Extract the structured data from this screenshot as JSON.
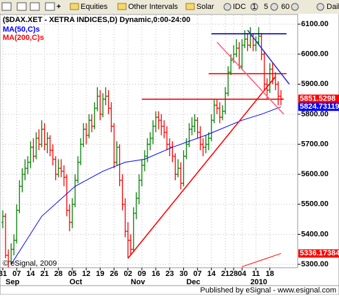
{
  "toolbar": [
    "Equities",
    "Other Intervals",
    "Solar",
    "IDC",
    "1",
    "5",
    "60",
    "Dail"
  ],
  "chart_data": {
    "type": "ohlc",
    "title": "($DAX.XET - XETRA INDICES,D) Dynamic,0:00-24:00",
    "up_color": "#008000",
    "down_color": "#ff0000",
    "xlim": [
      -1,
      106
    ],
    "ylim": [
      5291,
      6130
    ],
    "yticks": [
      {
        "value": 5300,
        "label": "5300.00"
      },
      {
        "value": 5400,
        "label": "5400.00"
      },
      {
        "value": 5500,
        "label": "5500.00"
      },
      {
        "value": 5600,
        "label": "5600.00"
      },
      {
        "value": 5700,
        "label": "5700.00"
      },
      {
        "value": 5800,
        "label": "5800.00"
      },
      {
        "value": 5900,
        "label": "5900.00"
      },
      {
        "value": 6000,
        "label": "6000.00"
      },
      {
        "value": 6100,
        "label": "6100.00"
      }
    ],
    "xticks": [
      {
        "value": 0,
        "label": "31"
      },
      {
        "value": 5,
        "label": "07"
      },
      {
        "value": 10,
        "label": "14"
      },
      {
        "value": 15,
        "label": "21"
      },
      {
        "value": 20,
        "label": "28"
      },
      {
        "value": 25,
        "label": "05"
      },
      {
        "value": 30,
        "label": "12"
      },
      {
        "value": 35,
        "label": "19"
      },
      {
        "value": 40,
        "label": "26"
      },
      {
        "value": 45,
        "label": "02"
      },
      {
        "value": 50,
        "label": "09"
      },
      {
        "value": 55,
        "label": "16"
      },
      {
        "value": 60,
        "label": "23"
      },
      {
        "value": 65,
        "label": "30"
      },
      {
        "value": 70,
        "label": "07"
      },
      {
        "value": 75,
        "label": "14"
      },
      {
        "value": 80,
        "label": "21"
      },
      {
        "value": 83,
        "label": "28"
      },
      {
        "value": 86,
        "label": "04"
      },
      {
        "value": 91,
        "label": "11"
      },
      {
        "value": 96,
        "label": "18"
      }
    ],
    "months": [
      {
        "value": 0,
        "label": "Sep"
      },
      {
        "value": 23,
        "label": "Oct"
      },
      {
        "value": 45,
        "label": "Nov"
      },
      {
        "value": 65,
        "label": "Dec"
      },
      {
        "value": 88,
        "label": "2010"
      }
    ],
    "grid": true,
    "ohlc": [
      [
        5440,
        5480,
        5420,
        5460
      ],
      [
        5460,
        5470,
        5320,
        5330
      ],
      [
        5330,
        5350,
        5290,
        5310
      ],
      [
        5310,
        5370,
        5300,
        5350
      ],
      [
        5350,
        5400,
        5330,
        5380
      ],
      [
        5380,
        5500,
        5370,
        5480
      ],
      [
        5480,
        5580,
        5470,
        5560
      ],
      [
        5560,
        5620,
        5540,
        5600
      ],
      [
        5600,
        5650,
        5580,
        5620
      ],
      [
        5620,
        5660,
        5600,
        5640
      ],
      [
        5640,
        5710,
        5620,
        5690
      ],
      [
        5690,
        5720,
        5640,
        5660
      ],
      [
        5660,
        5740,
        5650,
        5720
      ],
      [
        5720,
        5750,
        5680,
        5700
      ],
      [
        5700,
        5780,
        5690,
        5750
      ],
      [
        5750,
        5770,
        5680,
        5700
      ],
      [
        5700,
        5740,
        5670,
        5720
      ],
      [
        5720,
        5730,
        5660,
        5680
      ],
      [
        5680,
        5700,
        5630,
        5650
      ],
      [
        5650,
        5660,
        5580,
        5600
      ],
      [
        5600,
        5650,
        5590,
        5620
      ],
      [
        5620,
        5650,
        5590,
        5610
      ],
      [
        5610,
        5630,
        5560,
        5590
      ],
      [
        5590,
        5600,
        5460,
        5480
      ],
      [
        5480,
        5500,
        5410,
        5440
      ],
      [
        5440,
        5520,
        5420,
        5500
      ],
      [
        5500,
        5600,
        5490,
        5580
      ],
      [
        5580,
        5660,
        5570,
        5640
      ],
      [
        5640,
        5720,
        5630,
        5700
      ],
      [
        5700,
        5770,
        5690,
        5750
      ],
      [
        5750,
        5770,
        5700,
        5730
      ],
      [
        5730,
        5800,
        5720,
        5780
      ],
      [
        5780,
        5800,
        5740,
        5760
      ],
      [
        5760,
        5840,
        5750,
        5820
      ],
      [
        5820,
        5890,
        5810,
        5860
      ],
      [
        5860,
        5880,
        5780,
        5800
      ],
      [
        5800,
        5870,
        5790,
        5850
      ],
      [
        5850,
        5890,
        5830,
        5860
      ],
      [
        5860,
        5880,
        5800,
        5820
      ],
      [
        5820,
        5840,
        5740,
        5760
      ],
      [
        5760,
        5770,
        5620,
        5640
      ],
      [
        5640,
        5710,
        5630,
        5690
      ],
      [
        5690,
        5700,
        5560,
        5580
      ],
      [
        5580,
        5600,
        5480,
        5500
      ],
      [
        5500,
        5520,
        5390,
        5410
      ],
      [
        5410,
        5440,
        5320,
        5380
      ],
      [
        5380,
        5400,
        5330,
        5350
      ],
      [
        5350,
        5490,
        5340,
        5470
      ],
      [
        5470,
        5540,
        5450,
        5520
      ],
      [
        5520,
        5600,
        5500,
        5580
      ],
      [
        5580,
        5650,
        5560,
        5630
      ],
      [
        5630,
        5680,
        5610,
        5660
      ],
      [
        5660,
        5720,
        5640,
        5700
      ],
      [
        5700,
        5740,
        5680,
        5720
      ],
      [
        5720,
        5780,
        5700,
        5760
      ],
      [
        5760,
        5810,
        5740,
        5790
      ],
      [
        5790,
        5810,
        5750,
        5780
      ],
      [
        5780,
        5800,
        5730,
        5760
      ],
      [
        5760,
        5780,
        5720,
        5740
      ],
      [
        5740,
        5760,
        5680,
        5700
      ],
      [
        5700,
        5720,
        5660,
        5690
      ],
      [
        5690,
        5710,
        5640,
        5660
      ],
      [
        5660,
        5670,
        5580,
        5600
      ],
      [
        5600,
        5650,
        5590,
        5620
      ],
      [
        5620,
        5640,
        5550,
        5570
      ],
      [
        5570,
        5680,
        5560,
        5660
      ],
      [
        5660,
        5720,
        5650,
        5700
      ],
      [
        5700,
        5770,
        5690,
        5750
      ],
      [
        5750,
        5790,
        5730,
        5760
      ],
      [
        5760,
        5800,
        5740,
        5780
      ],
      [
        5780,
        5790,
        5720,
        5740
      ],
      [
        5740,
        5760,
        5680,
        5700
      ],
      [
        5700,
        5720,
        5660,
        5690
      ],
      [
        5690,
        5730,
        5670,
        5700
      ],
      [
        5700,
        5740,
        5680,
        5720
      ],
      [
        5720,
        5800,
        5710,
        5780
      ],
      [
        5780,
        5850,
        5770,
        5830
      ],
      [
        5830,
        5850,
        5800,
        5820
      ],
      [
        5820,
        5840,
        5770,
        5790
      ],
      [
        5790,
        5830,
        5780,
        5810
      ],
      [
        5810,
        5890,
        5800,
        5870
      ],
      [
        5870,
        5960,
        5860,
        5940
      ],
      [
        5940,
        6000,
        5930,
        5980
      ],
      [
        5980,
        6030,
        5970,
        6000
      ],
      [
        6000,
        6050,
        5990,
        6020
      ],
      [
        6020,
        6040,
        5950,
        5960
      ],
      [
        5960,
        6050,
        5950,
        6030
      ],
      [
        6030,
        6080,
        6020,
        6050
      ],
      [
        6050,
        6070,
        6010,
        6030
      ],
      [
        6030,
        6090,
        6020,
        6060
      ],
      [
        6060,
        6070,
        6010,
        6030
      ],
      [
        6030,
        6060,
        6010,
        6040
      ],
      [
        6040,
        6090,
        6030,
        6060
      ],
      [
        6060,
        6070,
        5980,
        6000
      ],
      [
        6000,
        6010,
        5880,
        5900
      ],
      [
        5900,
        5920,
        5850,
        5880
      ],
      [
        5880,
        5970,
        5870,
        5950
      ],
      [
        5950,
        5970,
        5900,
        5920
      ],
      [
        5920,
        5940,
        5880,
        5900
      ],
      [
        5900,
        5910,
        5830,
        5860
      ],
      [
        5860,
        5880,
        5830,
        5851.5298
      ]
    ],
    "series": [
      {
        "name": "MA(50,C)s",
        "color": "#0000ff",
        "x": [
          3,
          14,
          26,
          36,
          44,
          51,
          61,
          73,
          86,
          93,
          100
        ],
        "values": [
          5300,
          5460,
          5560,
          5610,
          5640,
          5650,
          5690,
          5730,
          5780,
          5800,
          5824.73119
        ]
      },
      {
        "name": "MA(200,C)s",
        "color": "#ff0000",
        "x": [
          86,
          100
        ],
        "values": [
          5292,
          5336.17384
        ]
      }
    ],
    "tags": [
      {
        "value": 5851.5298,
        "color": "#ff0000"
      },
      {
        "value": 5824.73119,
        "color": "#0000ff"
      },
      {
        "value": 5336.17384,
        "color": "#ff0000"
      }
    ],
    "drawings": [
      {
        "color": "#ff0000",
        "points": [
          [
            45,
            5320
          ],
          [
            98,
            5925
          ]
        ]
      },
      {
        "color": "#ff0000",
        "points": [
          [
            50,
            5850
          ],
          [
            101,
            5850
          ]
        ]
      },
      {
        "color": "#ff0000",
        "points": [
          [
            74,
            5935
          ],
          [
            102,
            5935
          ]
        ]
      },
      {
        "color": "#0000cc",
        "points": [
          [
            75,
            6068
          ],
          [
            102,
            6068
          ]
        ]
      },
      {
        "color": "#ff6080",
        "points": [
          [
            77,
            6040
          ],
          [
            101,
            5800
          ]
        ]
      },
      {
        "color": "#3333cc",
        "points": [
          [
            88,
            6080
          ],
          [
            103,
            5900
          ]
        ]
      }
    ],
    "copyright": "© eSignal, 2009",
    "footer": "Published by eSignal - www.esignal.com"
  }
}
